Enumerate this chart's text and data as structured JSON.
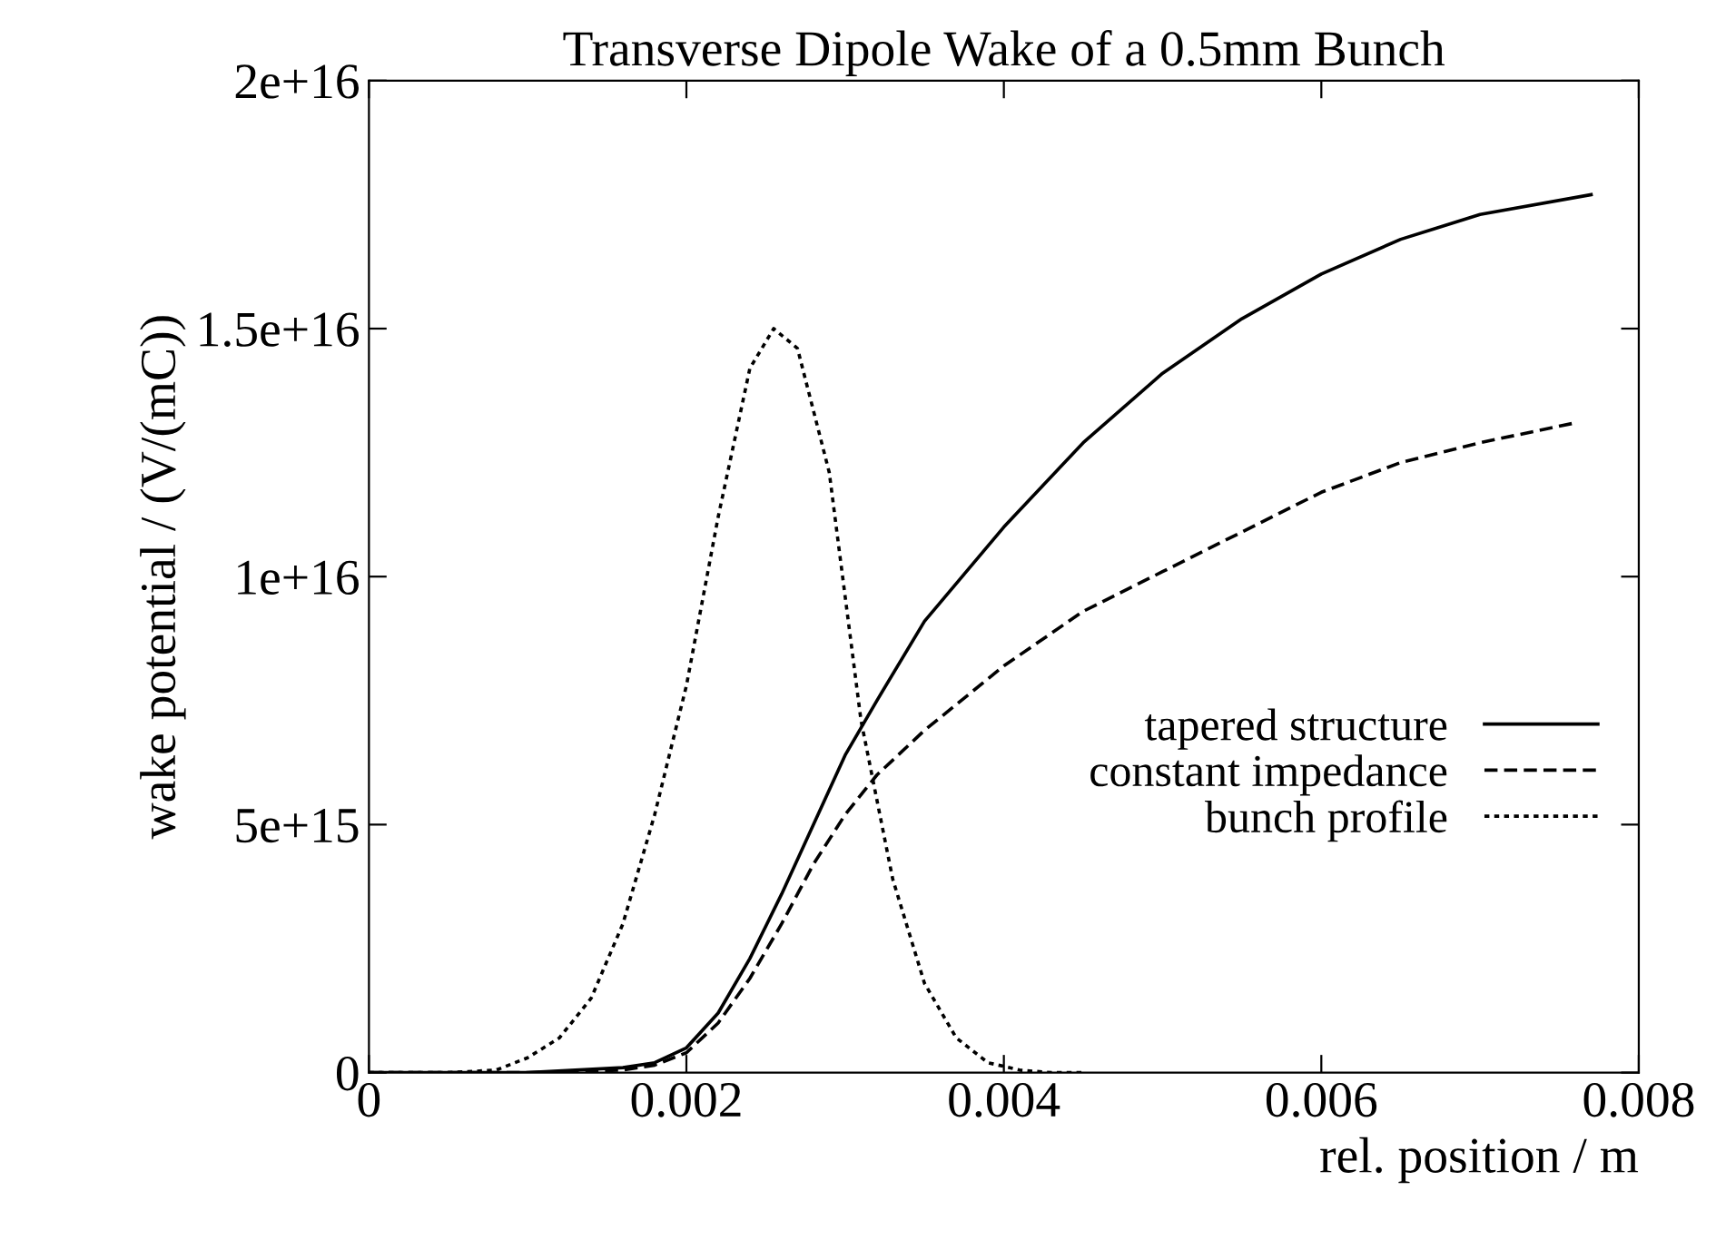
{
  "chart_data": {
    "type": "line",
    "title": "Transverse Dipole Wake of a 0.5mm Bunch",
    "xlabel": "rel. position / m",
    "ylabel": "wake potential / (V/(mC))",
    "series": [
      {
        "name": "tapered structure",
        "color": "#000000",
        "line_style": "solid",
        "x": [
          0.0,
          0.001,
          0.0016,
          0.0018,
          0.002,
          0.0022,
          0.0024,
          0.0026,
          0.0028,
          0.003,
          0.0032,
          0.0035,
          0.004,
          0.0045,
          0.005,
          0.0055,
          0.006,
          0.0065,
          0.007,
          0.0077
        ],
        "values": [
          0,
          0,
          100000000000000.0,
          200000000000000.0,
          500000000000000.0,
          1200000000000000.0,
          2300000000000000.0,
          3600000000000000.0,
          5000000000000000.0,
          6400000000000000.0,
          7500000000000000.0,
          9100000000000000.0,
          1.1e+16,
          1.27e+16,
          1.41e+16,
          1.52e+16,
          1.61e+16,
          1.68e+16,
          1.73e+16,
          1.77e+16
        ]
      },
      {
        "name": "constant impedance",
        "color": "#000000",
        "line_style": "dashed",
        "x": [
          0.0,
          0.001,
          0.0016,
          0.0018,
          0.002,
          0.0022,
          0.0024,
          0.0026,
          0.0028,
          0.003,
          0.0032,
          0.0035,
          0.004,
          0.0045,
          0.005,
          0.0055,
          0.006,
          0.0065,
          0.007,
          0.0076
        ],
        "values": [
          0,
          0,
          50000000000000.0,
          150000000000000.0,
          400000000000000.0,
          1000000000000000.0,
          1900000000000000.0,
          3000000000000000.0,
          4200000000000000.0,
          5200000000000000.0,
          6000000000000000.0,
          6900000000000000.0,
          8200000000000000.0,
          9300000000000000.0,
          1.01e+16,
          1.09e+16,
          1.17e+16,
          1.23e+16,
          1.27e+16,
          1.31e+16
        ]
      },
      {
        "name": "bunch profile",
        "color": "#000000",
        "line_style": "dotted",
        "x": [
          0.0,
          0.0005,
          0.0008,
          0.001,
          0.0012,
          0.0014,
          0.0016,
          0.0018,
          0.002,
          0.0022,
          0.0024,
          0.00255,
          0.0027,
          0.0029,
          0.0031,
          0.0033,
          0.0035,
          0.0037,
          0.0039,
          0.0041,
          0.0043,
          0.0045
        ],
        "values": [
          0,
          0,
          50000000000000.0,
          300000000000000.0,
          700000000000000.0,
          1500000000000000.0,
          3000000000000000.0,
          5200000000000000.0,
          7800000000000000.0,
          1.12e+16,
          1.42e+16,
          1.5e+16,
          1.46e+16,
          1.21e+16,
          7100000000000000.0,
          3900000000000000.0,
          1800000000000000.0,
          700000000000000.0,
          200000000000000.0,
          50000000000000.0,
          0,
          0
        ]
      }
    ],
    "xlim": [
      0,
      0.008
    ],
    "xticks": [
      0,
      0.002,
      0.004,
      0.006,
      0.008
    ],
    "ylim": [
      0,
      2e+16
    ],
    "yticks": [
      0,
      {
        "value": 5000000000000000.0,
        "label": "5e+15"
      },
      {
        "value": 1e+16,
        "label": "1e+16"
      },
      {
        "value": 1.5e+16,
        "label": "1.5e+16"
      },
      {
        "value": 2e+16,
        "label": "2e+16"
      }
    ],
    "grid": false,
    "legend": "right",
    "marker": "none"
  }
}
